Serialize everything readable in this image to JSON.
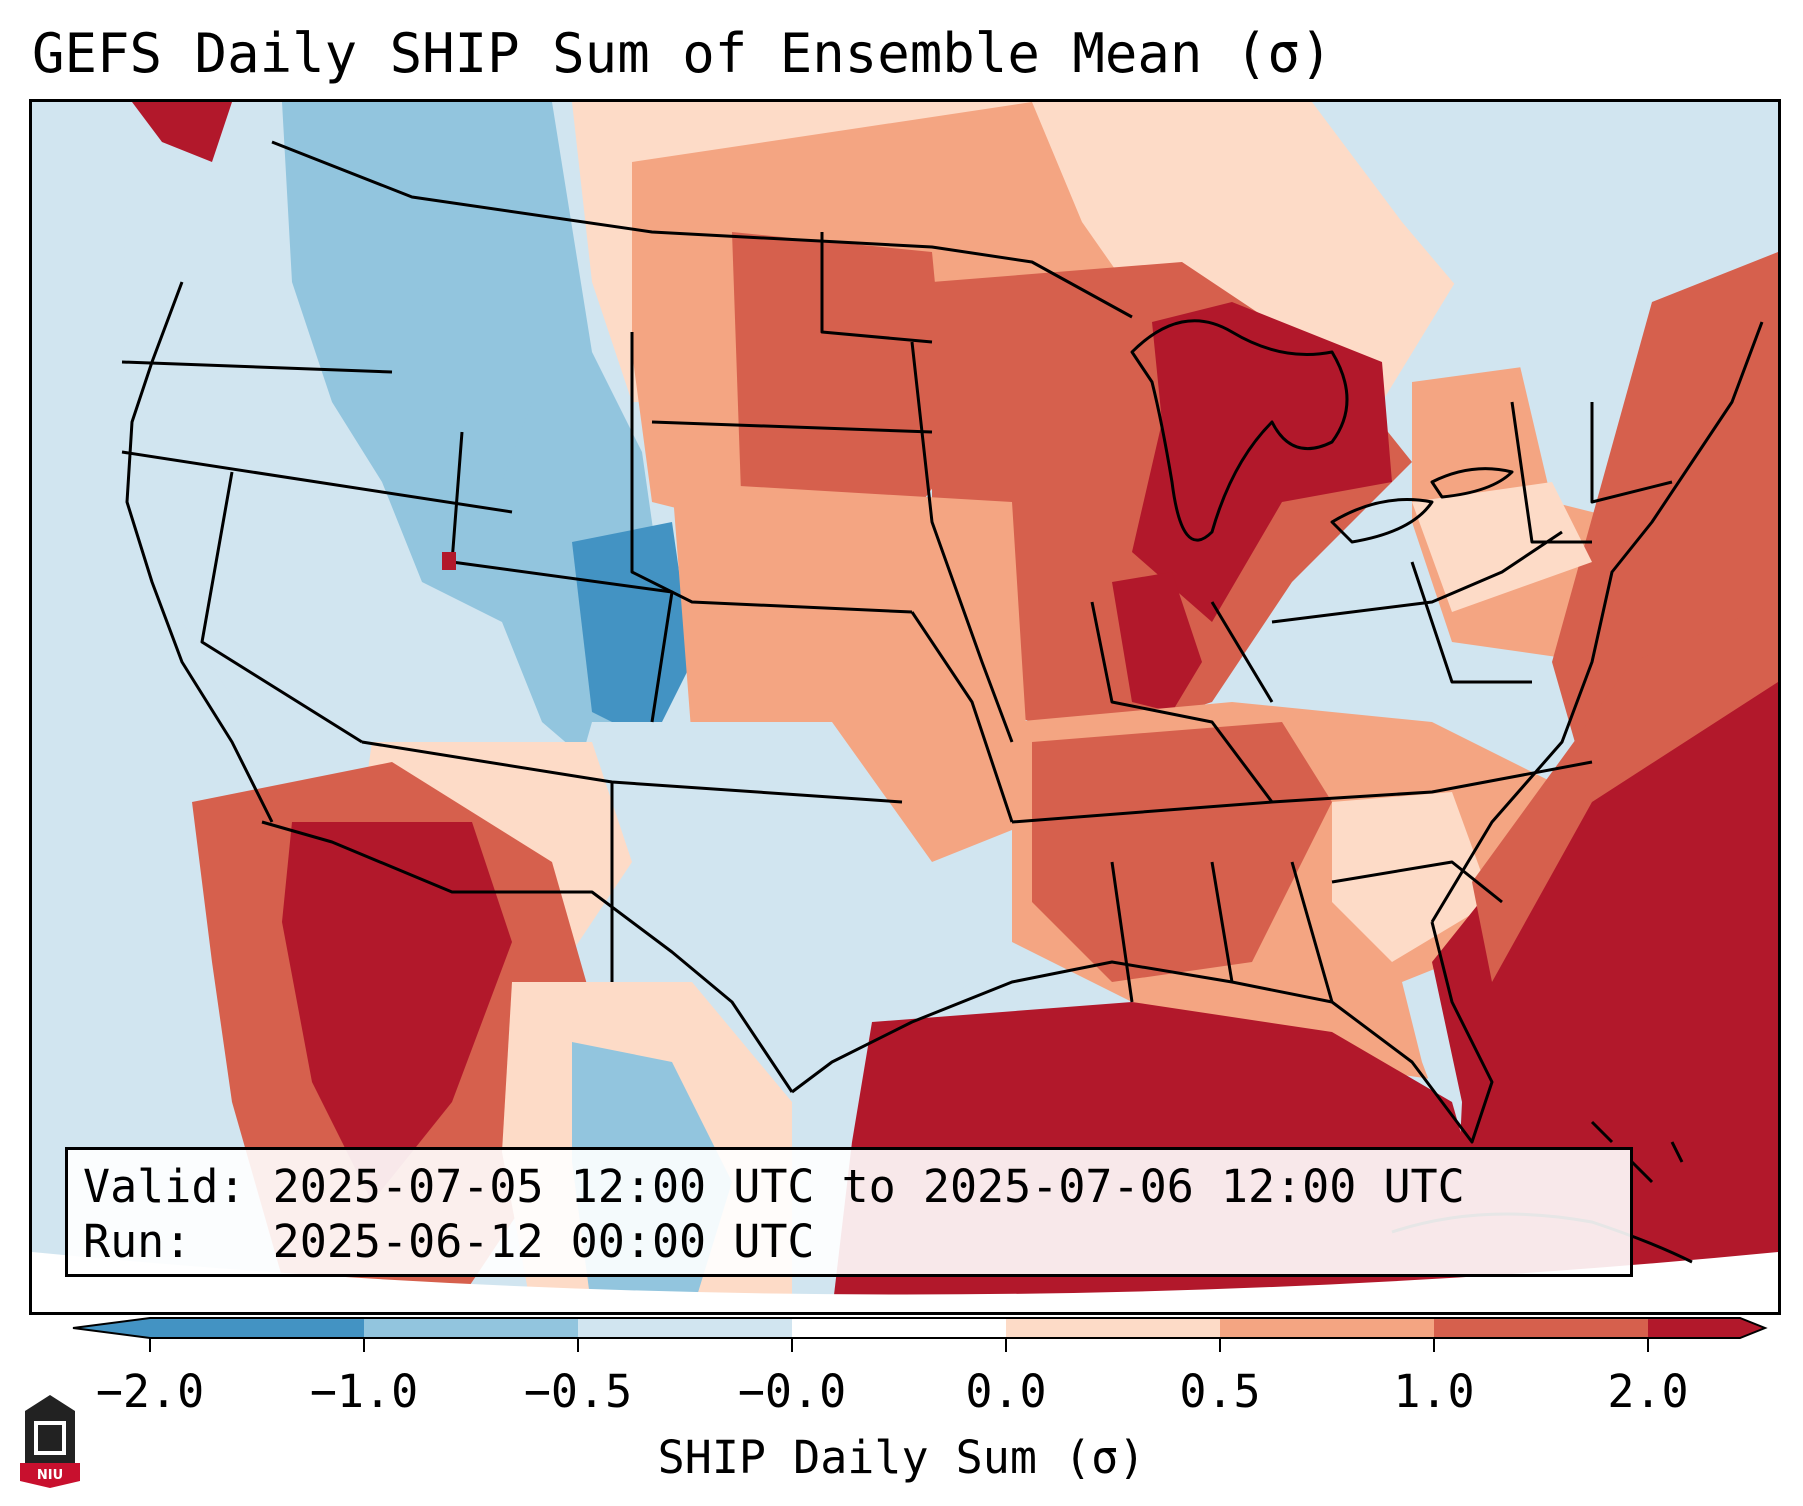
{
  "title": "GEFS Daily SHIP Sum of Ensemble Mean (σ)",
  "info": {
    "valid_label": "Valid:",
    "valid_value": "2025-07-05 12:00 UTC to 2025-07-06 12:00 UTC",
    "run_label": "Run:",
    "run_value": "2025-06-12 00:00 UTC"
  },
  "colorbar": {
    "label": "SHIP Daily Sum (σ)",
    "ticks": [
      "−2.0",
      "−1.0",
      "−0.5",
      "−0.0",
      "0.0",
      "0.5",
      "1.0",
      "2.0"
    ],
    "colors": [
      "#4393c3",
      "#92c5de",
      "#d1e5f0",
      "#ffffff",
      "#fddbc7",
      "#f4a582",
      "#d6604d",
      "#b2182b"
    ],
    "extend": "both"
  },
  "logo": {
    "text": "NIU",
    "color": "#c8102e"
  },
  "map": {
    "projection": "conus",
    "background": "#d1e5f0"
  }
}
